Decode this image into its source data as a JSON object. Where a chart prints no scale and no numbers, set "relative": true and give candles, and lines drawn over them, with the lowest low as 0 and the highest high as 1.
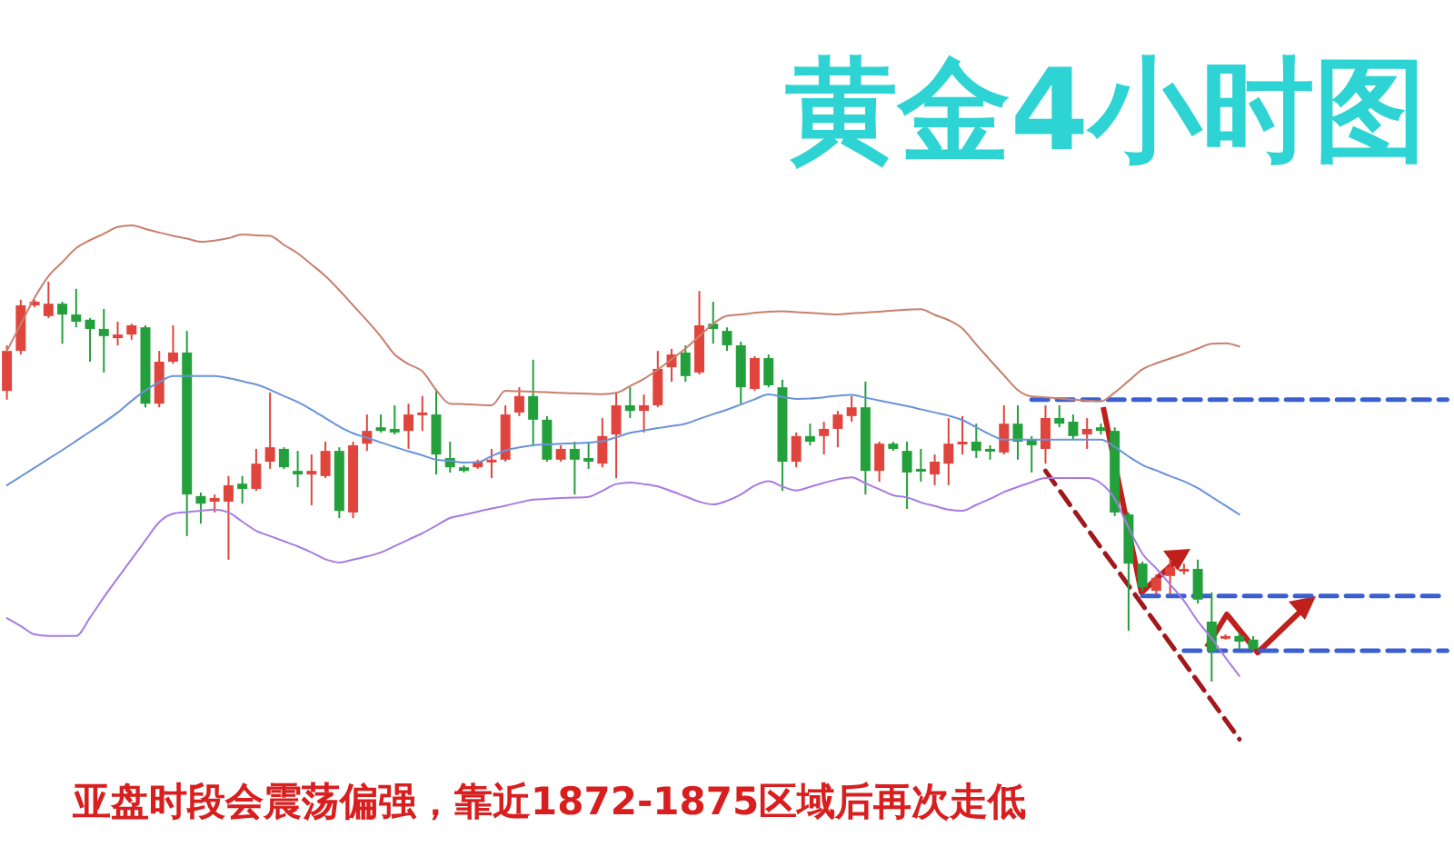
{
  "chart_data": {
    "type": "candlestick",
    "title": "黄金4小时图",
    "relative": true,
    "annotations": [
      "亚盘时段会震荡偏强，靠近1872-1875区域后再次走低"
    ],
    "categories": [
      null,
      null,
      null,
      null,
      null,
      null,
      null,
      null,
      null,
      null,
      null,
      null,
      null,
      null,
      null,
      null,
      null,
      null,
      null,
      null,
      null,
      null,
      null,
      null,
      null,
      null,
      null,
      null,
      null,
      null,
      null,
      null,
      null,
      null,
      null,
      null,
      null,
      null,
      null,
      null,
      null,
      null,
      null,
      null,
      null,
      null,
      null,
      null,
      null,
      null,
      null,
      null,
      null,
      null,
      null,
      null,
      null,
      null,
      null,
      null,
      null,
      null,
      null,
      null,
      null,
      null,
      null,
      null,
      null,
      null,
      null,
      null,
      null,
      null,
      null,
      null,
      null,
      null,
      null,
      null,
      null,
      null,
      null,
      null,
      null,
      null,
      null,
      null,
      null,
      null,
      null,
      null,
      null,
      null,
      null,
      null,
      null,
      null,
      null,
      null,
      null,
      null,
      null,
      null,
      null
    ],
    "ohlc": [
      [
        0.727,
        0.841,
        0.705,
        0.827
      ],
      [
        0.827,
        0.955,
        0.818,
        0.941
      ],
      [
        0.941,
        0.955,
        0.936,
        0.95
      ],
      [
        0.914,
        1.0,
        0.909,
        0.945
      ],
      [
        0.945,
        0.95,
        0.845,
        0.918
      ],
      [
        0.918,
        0.982,
        0.886,
        0.9
      ],
      [
        0.905,
        0.909,
        0.8,
        0.882
      ],
      [
        0.882,
        0.932,
        0.773,
        0.864
      ],
      [
        0.859,
        0.9,
        0.841,
        0.868
      ],
      [
        0.868,
        0.895,
        0.855,
        0.891
      ],
      [
        0.886,
        0.891,
        0.686,
        0.695
      ],
      [
        0.695,
        0.827,
        0.686,
        0.8
      ],
      [
        0.8,
        0.891,
        0.795,
        0.823
      ],
      [
        0.823,
        0.877,
        0.364,
        0.468
      ],
      [
        0.464,
        0.473,
        0.395,
        0.445
      ],
      [
        0.45,
        0.468,
        0.423,
        0.459
      ],
      [
        0.45,
        0.514,
        0.305,
        0.491
      ],
      [
        0.495,
        0.514,
        0.445,
        0.482
      ],
      [
        0.482,
        0.582,
        0.477,
        0.545
      ],
      [
        0.55,
        0.723,
        0.532,
        0.586
      ],
      [
        0.582,
        0.586,
        0.532,
        0.536
      ],
      [
        0.527,
        0.577,
        0.486,
        0.518
      ],
      [
        0.518,
        0.568,
        0.441,
        0.527
      ],
      [
        0.514,
        0.6,
        0.509,
        0.577
      ],
      [
        0.577,
        0.586,
        0.409,
        0.427
      ],
      [
        0.423,
        0.6,
        0.409,
        0.591
      ],
      [
        0.595,
        0.668,
        0.577,
        0.627
      ],
      [
        0.636,
        0.668,
        0.623,
        0.627
      ],
      [
        0.632,
        0.691,
        0.618,
        0.623
      ],
      [
        0.627,
        0.695,
        0.582,
        0.668
      ],
      [
        0.668,
        0.714,
        0.627,
        0.673
      ],
      [
        0.668,
        0.732,
        0.518,
        0.568
      ],
      [
        0.559,
        0.6,
        0.523,
        0.536
      ],
      [
        0.536,
        0.541,
        0.523,
        0.527
      ],
      [
        0.536,
        0.555,
        0.532,
        0.55
      ],
      [
        0.55,
        0.582,
        0.509,
        0.555
      ],
      [
        0.555,
        0.691,
        0.55,
        0.668
      ],
      [
        0.673,
        0.736,
        0.664,
        0.714
      ],
      [
        0.714,
        0.805,
        0.591,
        0.655
      ],
      [
        0.655,
        0.664,
        0.55,
        0.555
      ],
      [
        0.555,
        0.591,
        0.55,
        0.582
      ],
      [
        0.582,
        0.6,
        0.468,
        0.555
      ],
      [
        0.559,
        0.6,
        0.532,
        0.55
      ],
      [
        0.545,
        0.659,
        0.536,
        0.614
      ],
      [
        0.618,
        0.723,
        0.509,
        0.691
      ],
      [
        0.691,
        0.736,
        0.659,
        0.677
      ],
      [
        0.677,
        0.718,
        0.623,
        0.691
      ],
      [
        0.691,
        0.827,
        0.686,
        0.782
      ],
      [
        0.786,
        0.832,
        0.75,
        0.818
      ],
      [
        0.823,
        0.841,
        0.75,
        0.764
      ],
      [
        0.773,
        0.977,
        0.768,
        0.891
      ],
      [
        0.895,
        0.95,
        0.845,
        0.882
      ],
      [
        0.877,
        0.886,
        0.827,
        0.841
      ],
      [
        0.841,
        0.85,
        0.695,
        0.736
      ],
      [
        0.732,
        0.814,
        0.727,
        0.809
      ],
      [
        0.809,
        0.818,
        0.736,
        0.741
      ],
      [
        0.736,
        0.755,
        0.477,
        0.55
      ],
      [
        0.55,
        0.623,
        0.536,
        0.614
      ],
      [
        0.614,
        0.645,
        0.591,
        0.6
      ],
      [
        0.614,
        0.65,
        0.568,
        0.632
      ],
      [
        0.632,
        0.677,
        0.586,
        0.668
      ],
      [
        0.664,
        0.714,
        0.65,
        0.686
      ],
      [
        0.686,
        0.75,
        0.468,
        0.527
      ],
      [
        0.527,
        0.6,
        0.5,
        0.595
      ],
      [
        0.595,
        0.6,
        0.577,
        0.582
      ],
      [
        0.577,
        0.6,
        0.432,
        0.523
      ],
      [
        0.532,
        0.582,
        0.5,
        0.527
      ],
      [
        0.518,
        0.568,
        0.491,
        0.55
      ],
      [
        0.545,
        0.659,
        0.491,
        0.595
      ],
      [
        0.595,
        0.664,
        0.568,
        0.6
      ],
      [
        0.6,
        0.645,
        0.559,
        0.577
      ],
      [
        0.582,
        0.591,
        0.555,
        0.577
      ],
      [
        0.573,
        0.691,
        0.568,
        0.645
      ],
      [
        0.645,
        0.691,
        0.555,
        0.6
      ],
      [
        0.605,
        0.614,
        0.523,
        0.591
      ],
      [
        0.582,
        0.691,
        0.545,
        0.659
      ],
      [
        0.659,
        0.691,
        0.636,
        0.645
      ],
      [
        0.65,
        0.668,
        0.605,
        0.614
      ],
      [
        0.618,
        0.659,
        0.582,
        0.632
      ],
      [
        0.636,
        0.645,
        0.618,
        0.627
      ],
      [
        0.627,
        0.636,
        0.414,
        0.423
      ],
      [
        0.418,
        0.423,
        0.127,
        0.295
      ],
      [
        0.295,
        0.3,
        0.227,
        0.236
      ],
      [
        0.227,
        0.268,
        0.218,
        0.259
      ],
      [
        0.264,
        0.305,
        0.218,
        0.286
      ],
      [
        0.277,
        0.295,
        0.268,
        0.282
      ],
      [
        0.282,
        0.305,
        0.195,
        0.205
      ],
      [
        0.15,
        0.223,
        0.0,
        0.077
      ],
      [
        0.109,
        0.118,
        0.105,
        0.114
      ],
      [
        0.114,
        0.123,
        0.082,
        0.1
      ],
      [
        0.105,
        0.114,
        0.077,
        0.082
      ],
      null,
      null,
      null,
      null,
      null,
      null,
      null,
      null,
      null,
      null,
      null,
      null,
      null,
      null
    ],
    "series": [
      {
        "type": "line",
        "color": "#c8806e",
        "values": [
          0.827,
          0.894,
          0.96,
          1.014,
          1.049,
          1.084,
          1.104,
          1.12,
          1.137,
          1.141,
          1.132,
          1.123,
          1.115,
          1.108,
          1.1,
          1.103,
          1.109,
          1.118,
          1.116,
          1.115,
          1.092,
          1.071,
          1.043,
          1.014,
          0.979,
          0.941,
          0.903,
          0.863,
          0.818,
          0.794,
          0.776,
          0.729,
          0.695,
          0.694,
          0.692,
          0.691,
          0.727,
          0.726,
          0.725,
          0.724,
          0.722,
          0.721,
          0.72,
          0.719,
          0.722,
          0.739,
          0.757,
          0.78,
          0.806,
          0.833,
          0.864,
          0.895,
          0.915,
          0.918,
          0.922,
          0.925,
          0.926,
          0.924,
          0.922,
          0.92,
          0.918,
          0.921,
          0.923,
          0.925,
          0.928,
          0.93,
          0.931,
          0.917,
          0.904,
          0.883,
          0.843,
          0.804,
          0.766,
          0.729,
          0.713,
          0.711,
          0.708,
          0.705,
          0.703,
          0.701,
          0.723,
          0.752,
          0.781,
          0.796,
          0.808,
          0.82,
          0.833,
          0.845,
          0.846,
          0.838,
          null,
          null,
          null,
          null,
          null,
          null,
          null,
          null,
          null,
          null,
          null,
          null,
          null,
          null,
          null
        ]
      },
      {
        "type": "line",
        "color": "#6a93d8",
        "values": [
          0.491,
          0.513,
          0.535,
          0.557,
          0.579,
          0.602,
          0.625,
          0.648,
          0.673,
          0.702,
          0.728,
          0.749,
          0.764,
          0.764,
          0.764,
          0.764,
          0.759,
          0.751,
          0.743,
          0.73,
          0.714,
          0.699,
          0.68,
          0.659,
          0.638,
          0.621,
          0.61,
          0.598,
          0.587,
          0.576,
          0.566,
          0.555,
          0.552,
          0.548,
          0.549,
          0.564,
          0.578,
          0.586,
          0.591,
          0.593,
          0.595,
          0.596,
          0.598,
          0.601,
          0.611,
          0.622,
          0.628,
          0.634,
          0.639,
          0.645,
          0.657,
          0.669,
          0.68,
          0.693,
          0.706,
          0.718,
          0.712,
          0.707,
          0.708,
          0.711,
          0.715,
          0.717,
          0.71,
          0.703,
          0.696,
          0.689,
          0.681,
          0.673,
          0.665,
          0.654,
          0.636,
          0.618,
          0.605,
          0.605,
          0.605,
          0.605,
          0.605,
          0.605,
          0.605,
          0.605,
          0.587,
          0.563,
          0.542,
          0.528,
          0.514,
          0.501,
          0.484,
          0.462,
          0.44,
          0.418,
          null,
          null,
          null,
          null,
          null,
          null,
          null,
          null,
          null,
          null,
          null,
          null,
          null,
          null,
          null
        ]
      },
      {
        "type": "line",
        "color": "#a77ce0",
        "values": [
          0.159,
          0.139,
          0.118,
          0.114,
          0.114,
          0.114,
          0.16,
          0.211,
          0.259,
          0.306,
          0.353,
          0.399,
          0.42,
          0.424,
          0.427,
          0.43,
          0.423,
          0.4,
          0.377,
          0.364,
          0.351,
          0.338,
          0.323,
          0.306,
          0.298,
          0.305,
          0.313,
          0.323,
          0.339,
          0.355,
          0.371,
          0.39,
          0.409,
          0.417,
          0.425,
          0.433,
          0.44,
          0.448,
          0.455,
          0.457,
          0.459,
          0.46,
          0.462,
          0.477,
          0.494,
          0.498,
          0.494,
          0.488,
          0.476,
          0.463,
          0.45,
          0.443,
          0.452,
          0.468,
          0.49,
          0.501,
          0.488,
          0.478,
          0.487,
          0.497,
          0.506,
          0.511,
          0.496,
          0.481,
          0.466,
          0.461,
          0.448,
          0.439,
          0.43,
          0.427,
          0.442,
          0.457,
          0.474,
          0.487,
          0.499,
          0.509,
          0.509,
          0.509,
          0.509,
          0.496,
          0.457,
          0.385,
          0.32,
          0.283,
          0.243,
          0.202,
          0.151,
          0.108,
          0.06,
          0.014,
          null,
          null,
          null,
          null,
          null,
          null,
          null,
          null,
          null,
          null,
          null,
          null,
          null,
          null,
          null
        ]
      },
      {
        "type": "line",
        "color": "#a0181c",
        "line_style": "dashed",
        "values": [
          null,
          null,
          null,
          null,
          null,
          null,
          null,
          null,
          null,
          null,
          null,
          null,
          null,
          null,
          null,
          null,
          null,
          null,
          null,
          null,
          null,
          null,
          null,
          null,
          null,
          null,
          null,
          null,
          null,
          null,
          null,
          null,
          null,
          null,
          null,
          null,
          null,
          null,
          null,
          null,
          null,
          null,
          null,
          null,
          null,
          null,
          null,
          null,
          null,
          null,
          null,
          null,
          null,
          null,
          null,
          null,
          null,
          null,
          null,
          null,
          null,
          null,
          null,
          null,
          null,
          null,
          null,
          null,
          null,
          null,
          null,
          null,
          null,
          null,
          null,
          0.527,
          0.479,
          0.431,
          0.383,
          0.335,
          0.288,
          0.24,
          0.192,
          0.144,
          0.096,
          0.048,
          0.0,
          -0.048,
          -0.096,
          -0.144,
          null,
          null,
          null,
          null,
          null,
          null,
          null,
          null,
          null,
          null,
          null,
          null,
          null,
          null,
          null
        ]
      },
      {
        "type": "line",
        "color": "#3a5fd0",
        "line_style": "dashed",
        "values": [
          null,
          null,
          null,
          null,
          null,
          null,
          null,
          null,
          null,
          null,
          null,
          null,
          null,
          null,
          null,
          null,
          null,
          null,
          null,
          null,
          null,
          null,
          null,
          null,
          null,
          null,
          null,
          null,
          null,
          null,
          null,
          null,
          null,
          null,
          null,
          null,
          null,
          null,
          null,
          null,
          null,
          null,
          null,
          null,
          null,
          null,
          null,
          null,
          null,
          null,
          null,
          null,
          null,
          null,
          null,
          null,
          null,
          null,
          null,
          null,
          null,
          null,
          null,
          null,
          null,
          null,
          null,
          null,
          null,
          null,
          null,
          null,
          null,
          null,
          0.705,
          0.705,
          0.705,
          0.705,
          0.705,
          0.705,
          0.705,
          0.705,
          0.705,
          0.705,
          0.705,
          0.705,
          0.705,
          0.705,
          0.705,
          0.705,
          0.705,
          0.705,
          0.705,
          0.705,
          0.705,
          0.705,
          0.705,
          0.705,
          0.705,
          0.705,
          0.705,
          0.705,
          0.705,
          0.705,
          0.705
        ]
      },
      {
        "type": "line",
        "color": "#3a5fd0",
        "line_style": "dashed",
        "values": [
          null,
          null,
          null,
          null,
          null,
          null,
          null,
          null,
          null,
          null,
          null,
          null,
          null,
          null,
          null,
          null,
          null,
          null,
          null,
          null,
          null,
          null,
          null,
          null,
          null,
          null,
          null,
          null,
          null,
          null,
          null,
          null,
          null,
          null,
          null,
          null,
          null,
          null,
          null,
          null,
          null,
          null,
          null,
          null,
          null,
          null,
          null,
          null,
          null,
          null,
          null,
          null,
          null,
          null,
          null,
          null,
          null,
          null,
          null,
          null,
          null,
          null,
          null,
          null,
          null,
          null,
          null,
          null,
          null,
          null,
          null,
          null,
          null,
          null,
          null,
          null,
          null,
          null,
          null,
          null,
          null,
          null,
          0.214,
          0.214,
          0.214,
          0.214,
          0.214,
          0.214,
          0.214,
          0.214,
          0.214,
          0.214,
          0.214,
          0.214,
          0.214,
          0.214,
          0.214,
          0.214,
          0.214,
          0.214,
          0.214,
          0.214,
          0.214,
          0.214,
          0.214
        ]
      },
      {
        "type": "line",
        "color": "#3a5fd0",
        "line_style": "dashed",
        "values": [
          null,
          null,
          null,
          null,
          null,
          null,
          null,
          null,
          null,
          null,
          null,
          null,
          null,
          null,
          null,
          null,
          null,
          null,
          null,
          null,
          null,
          null,
          null,
          null,
          null,
          null,
          null,
          null,
          null,
          null,
          null,
          null,
          null,
          null,
          null,
          null,
          null,
          null,
          null,
          null,
          null,
          null,
          null,
          null,
          null,
          null,
          null,
          null,
          null,
          null,
          null,
          null,
          null,
          null,
          null,
          null,
          null,
          null,
          null,
          null,
          null,
          null,
          null,
          null,
          null,
          null,
          null,
          null,
          null,
          null,
          null,
          null,
          null,
          null,
          null,
          null,
          null,
          null,
          null,
          null,
          null,
          null,
          null,
          null,
          null,
          0.077,
          0.077,
          0.077,
          0.077,
          0.077,
          0.077,
          0.077,
          0.077,
          0.077,
          0.077,
          0.077,
          0.077,
          0.077,
          0.077,
          0.077,
          0.077,
          0.077,
          0.077,
          0.077,
          0.077
        ]
      }
    ]
  }
}
